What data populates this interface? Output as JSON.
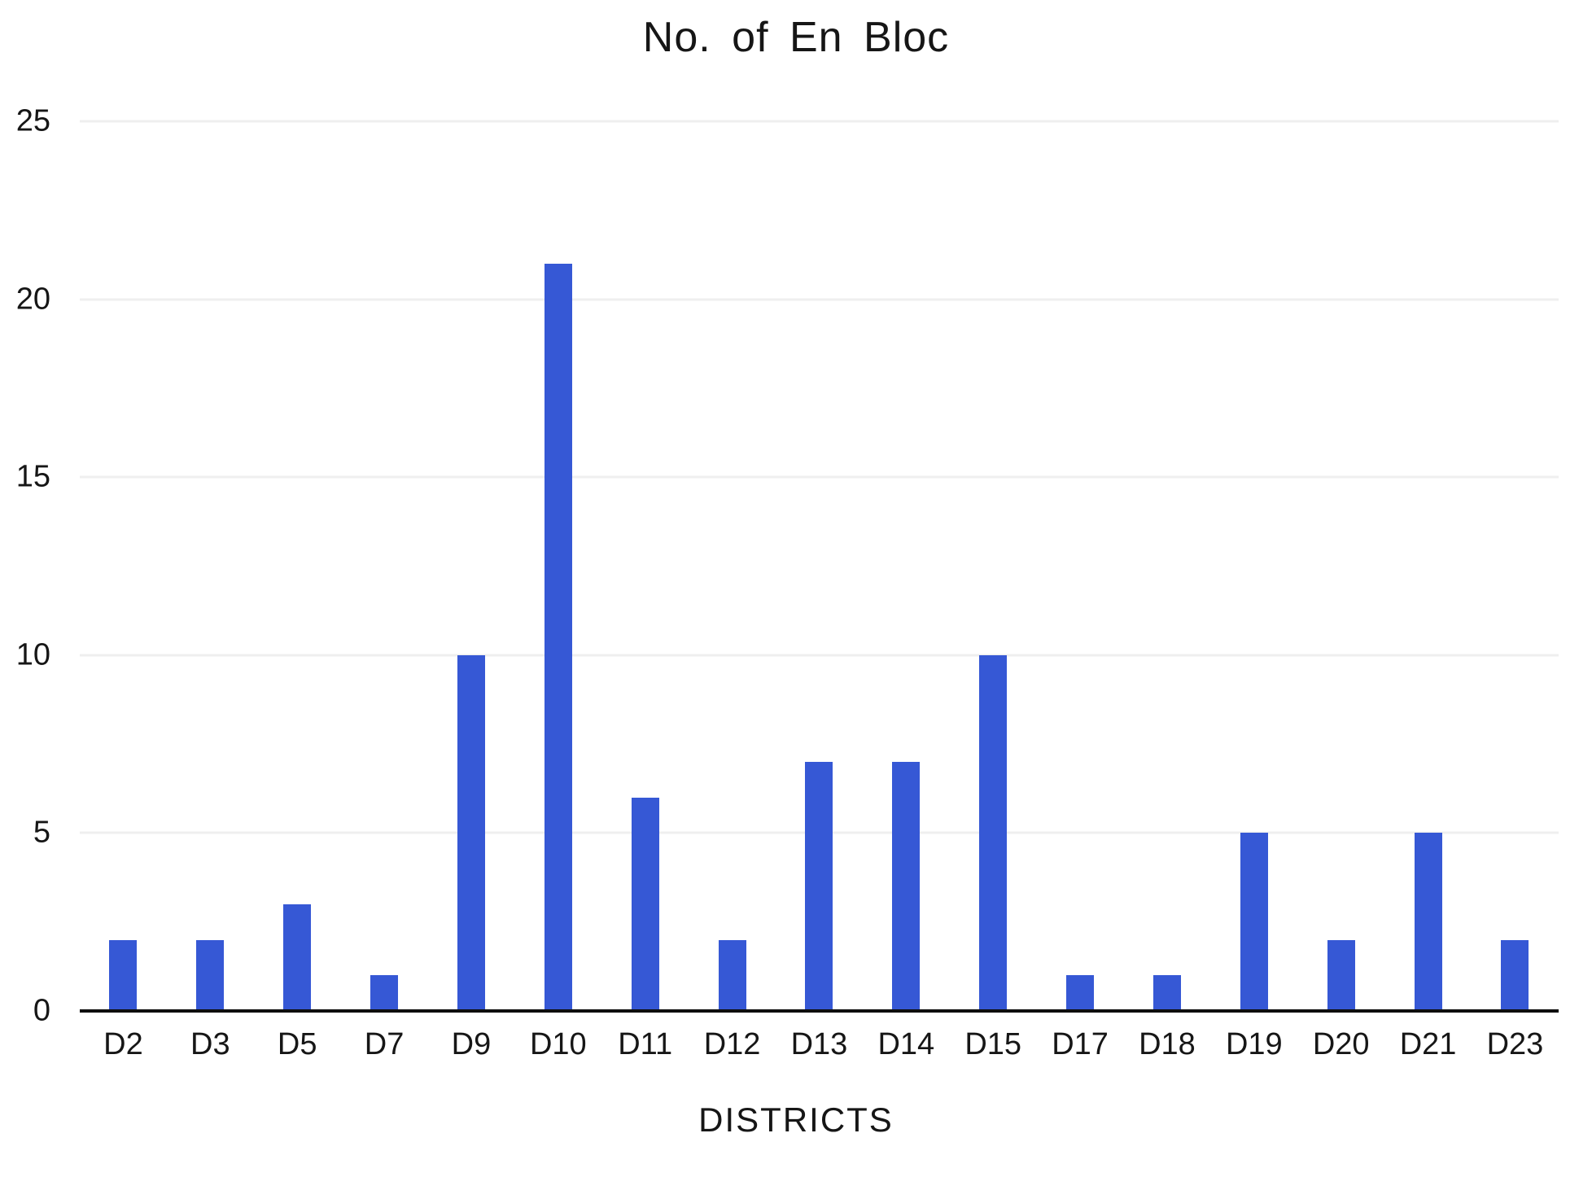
{
  "chart": {
    "title": "No. of En Bloc",
    "xlabel": "DISTRICTS"
  },
  "chart_data": {
    "type": "bar",
    "title": "No. of En Bloc",
    "xlabel": "DISTRICTS",
    "ylabel": "",
    "categories": [
      "D2",
      "D3",
      "D5",
      "D7",
      "D9",
      "D10",
      "D11",
      "D12",
      "D13",
      "D14",
      "D15",
      "D17",
      "D18",
      "D19",
      "D20",
      "D21",
      "D23"
    ],
    "values": [
      2,
      2,
      3,
      1,
      10,
      21,
      6,
      2,
      7,
      7,
      10,
      1,
      1,
      5,
      2,
      5,
      2
    ],
    "ylim": [
      0,
      25
    ],
    "yticks": [
      0,
      5,
      10,
      15,
      20,
      25
    ],
    "grid": "horizontal-only",
    "legend": "none"
  },
  "colors": {
    "bar": "#3658D5",
    "gridline": "#EFEFEF",
    "axis": "#0E0E0E",
    "text": "#161616",
    "background": "#FFFFFF"
  }
}
